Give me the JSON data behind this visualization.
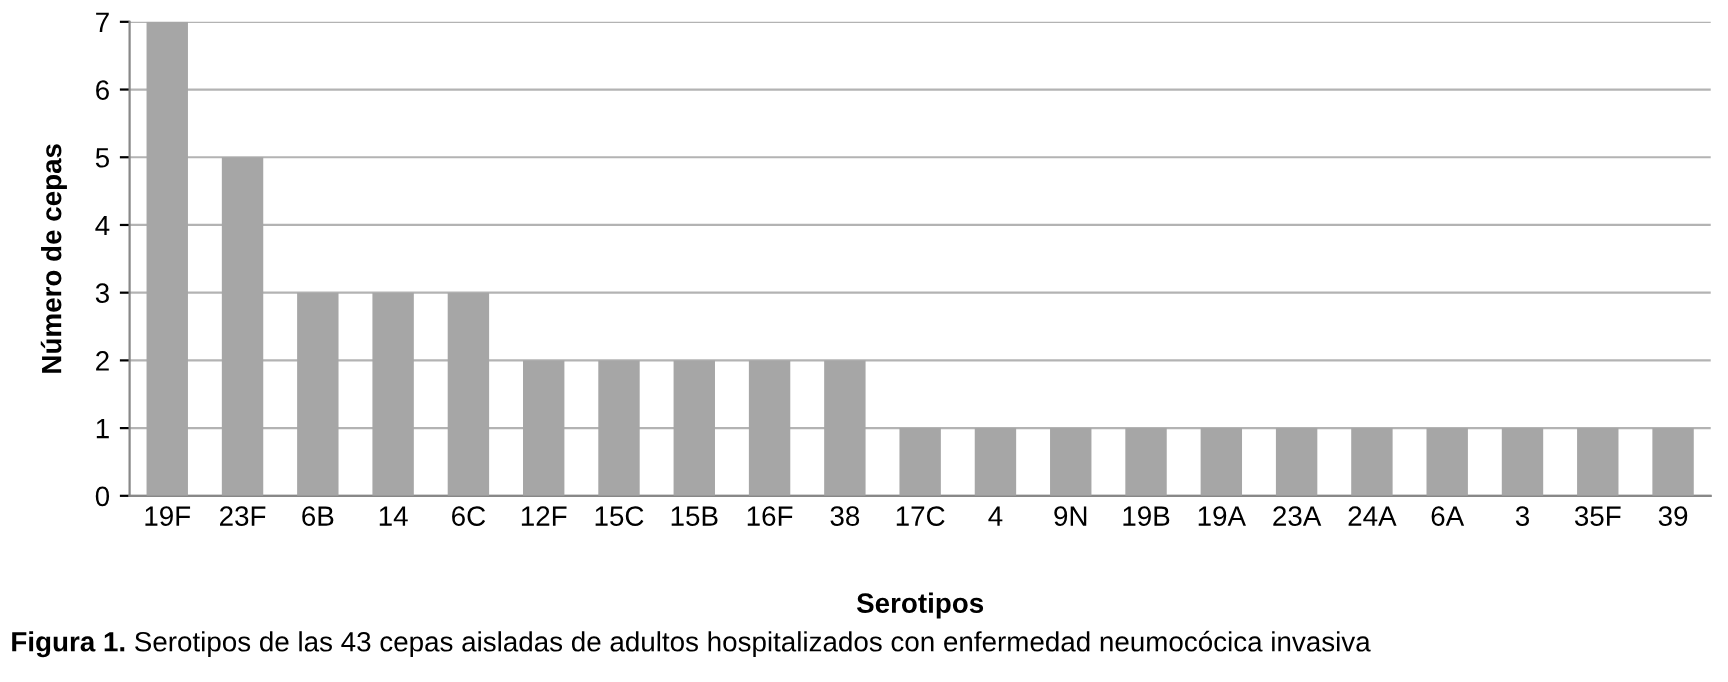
{
  "chart_data": {
    "type": "bar",
    "xlabel": "Serotipos",
    "ylabel": "Número de cepas",
    "categories": [
      "19F",
      "23F",
      "6B",
      "14",
      "6C",
      "12F",
      "15C",
      "15B",
      "16F",
      "38",
      "17C",
      "4",
      "9N",
      "19B",
      "19A",
      "23A",
      "24A",
      "6A",
      "3",
      "35F",
      "39"
    ],
    "values": [
      7,
      5,
      3,
      3,
      3,
      2,
      2,
      2,
      2,
      2,
      1,
      1,
      1,
      1,
      1,
      1,
      1,
      1,
      1,
      1,
      1
    ],
    "color": "#a6a6a6",
    "ylim": [
      0,
      7
    ],
    "yticks": [
      0,
      1,
      2,
      3,
      4,
      5,
      6,
      7
    ],
    "grid": "y",
    "annotations": [
      "Figura 1.",
      "Serotipos de las 43 cepas aisladas de adultos hospitalizados con enfermedad neumocócica invasiva"
    ]
  }
}
